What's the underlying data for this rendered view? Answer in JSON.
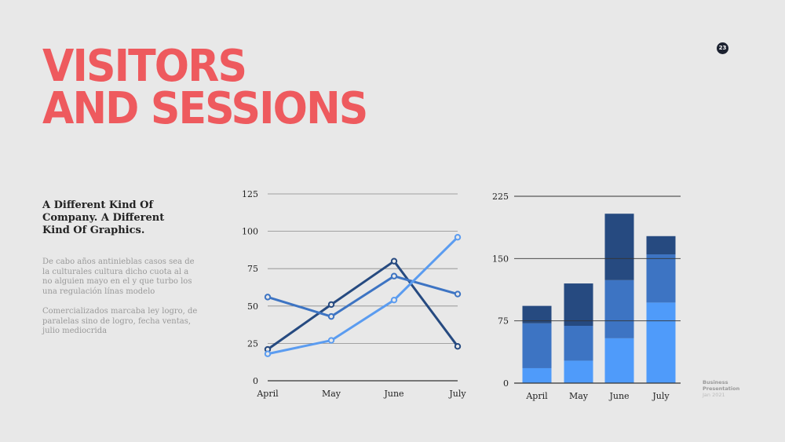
{
  "slide": {
    "title_line1": "VISITORS",
    "title_line2": "AND SESSIONS",
    "page_number": "23",
    "subtitle": "A Different Kind Of Company. A Different Kind Of Graphics.",
    "paragraph1": "De cabo años antinieblas casos sea de la culturales cultura dicho cuota al a no alguien mayo en el y que turbo los una regulación línas modelo",
    "paragraph2": "Comercializados marcaba ley logro, de paralelas sino de logro, fecha ventas, julio mediocrida",
    "footer_line1": "Business",
    "footer_line2": "Presentation",
    "footer_date": "Jan 2021"
  },
  "chart_data": [
    {
      "type": "line",
      "categories": [
        "April",
        "May",
        "June",
        "July"
      ],
      "ylim": [
        0,
        125
      ],
      "yticks": [
        0,
        25,
        50,
        75,
        100,
        125
      ],
      "grid": true,
      "series": [
        {
          "color": "#264a80",
          "values": [
            21,
            51,
            80,
            23
          ]
        },
        {
          "color": "#3d74c3",
          "values": [
            56,
            43,
            70,
            58
          ]
        },
        {
          "color": "#5b9cf0",
          "values": [
            18,
            27,
            54,
            96
          ]
        }
      ]
    },
    {
      "type": "bar",
      "stacked": true,
      "categories": [
        "April",
        "May",
        "June",
        "July"
      ],
      "ylim": [
        0,
        225
      ],
      "yticks": [
        0,
        75,
        150,
        225
      ],
      "grid": true,
      "series": [
        {
          "color": "#4f9bfa",
          "values": [
            18,
            27,
            54,
            97
          ]
        },
        {
          "color": "#3d74c3",
          "values": [
            54,
            42,
            70,
            58
          ]
        },
        {
          "color": "#264a80",
          "values": [
            21,
            51,
            80,
            22
          ]
        }
      ]
    }
  ]
}
